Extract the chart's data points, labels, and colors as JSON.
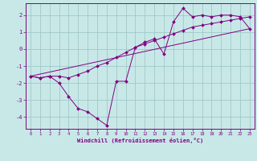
{
  "bg_color": "#c8e8e8",
  "grid_color": "#a0c8c8",
  "line_color": "#800080",
  "marker_color": "#800080",
  "xlabel": "Windchill (Refroidissement éolien,°C)",
  "xlabel_color": "#800080",
  "tick_color": "#800080",
  "xlim": [
    -0.5,
    23.5
  ],
  "ylim": [
    -4.7,
    2.7
  ],
  "yticks": [
    -4,
    -3,
    -2,
    -1,
    0,
    1,
    2
  ],
  "xticks": [
    0,
    1,
    2,
    3,
    4,
    5,
    6,
    7,
    8,
    9,
    10,
    11,
    12,
    13,
    14,
    15,
    16,
    17,
    18,
    19,
    20,
    21,
    22,
    23
  ],
  "series1_x": [
    0,
    1,
    2,
    3,
    4,
    5,
    6,
    7,
    8,
    9,
    10,
    11,
    12,
    13,
    14,
    15,
    16,
    17,
    18,
    19,
    20,
    21,
    22,
    23
  ],
  "series1_y": [
    -1.6,
    -1.7,
    -1.6,
    -1.6,
    -1.7,
    -1.5,
    -1.3,
    -1.0,
    -0.8,
    -0.5,
    -0.2,
    0.1,
    0.3,
    0.5,
    0.7,
    0.9,
    1.1,
    1.3,
    1.4,
    1.5,
    1.6,
    1.7,
    1.8,
    1.9
  ],
  "series2_x": [
    0,
    1,
    2,
    3,
    4,
    5,
    6,
    7,
    8,
    9,
    10,
    11,
    12,
    13,
    14,
    15,
    16,
    17,
    18,
    19,
    20,
    21,
    22,
    23
  ],
  "series2_y": [
    -1.6,
    -1.7,
    -1.6,
    -2.0,
    -2.8,
    -3.5,
    -3.7,
    -4.1,
    -4.5,
    -1.9,
    -1.9,
    0.1,
    0.4,
    0.6,
    -0.3,
    1.6,
    2.4,
    1.9,
    2.0,
    1.9,
    2.0,
    2.0,
    1.9,
    1.2
  ],
  "series3_x": [
    0,
    23
  ],
  "series3_y": [
    -1.6,
    1.2
  ],
  "figsize": [
    3.2,
    2.0
  ],
  "dpi": 100
}
